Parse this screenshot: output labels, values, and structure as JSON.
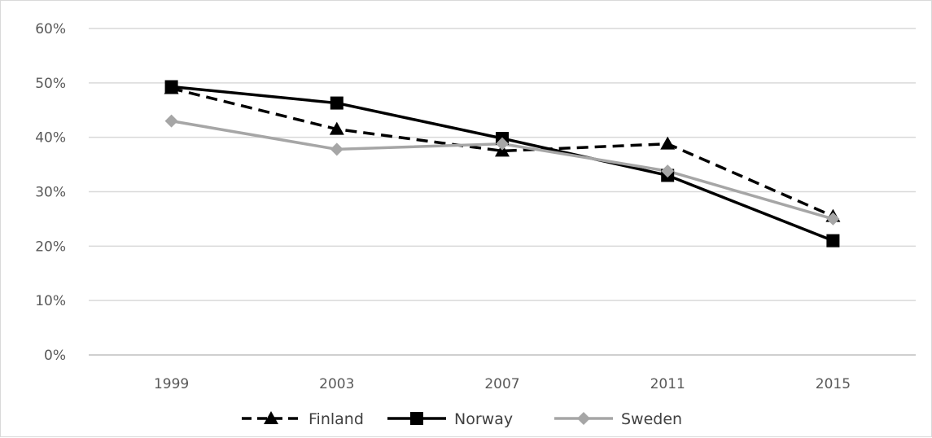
{
  "chart_data": {
    "type": "line",
    "categories": [
      "1999",
      "2003",
      "2007",
      "2011",
      "2015"
    ],
    "y_ticks": [
      "0%",
      "10%",
      "20%",
      "30%",
      "40%",
      "50%",
      "60%"
    ],
    "ylim": [
      0,
      60
    ],
    "grid": true,
    "legend_position": "bottom",
    "series": [
      {
        "name": "Finland",
        "values": [
          49,
          41.5,
          37.5,
          38.8,
          25.5
        ],
        "color": "#000000",
        "dash": true,
        "marker": "triangle"
      },
      {
        "name": "Norway",
        "values": [
          49.3,
          46.3,
          39.8,
          33,
          21
        ],
        "color": "#000000",
        "dash": false,
        "marker": "square"
      },
      {
        "name": "Sweden",
        "values": [
          43,
          37.8,
          38.8,
          33.8,
          25
        ],
        "color": "#a6a6a6",
        "dash": false,
        "marker": "diamond"
      }
    ]
  }
}
